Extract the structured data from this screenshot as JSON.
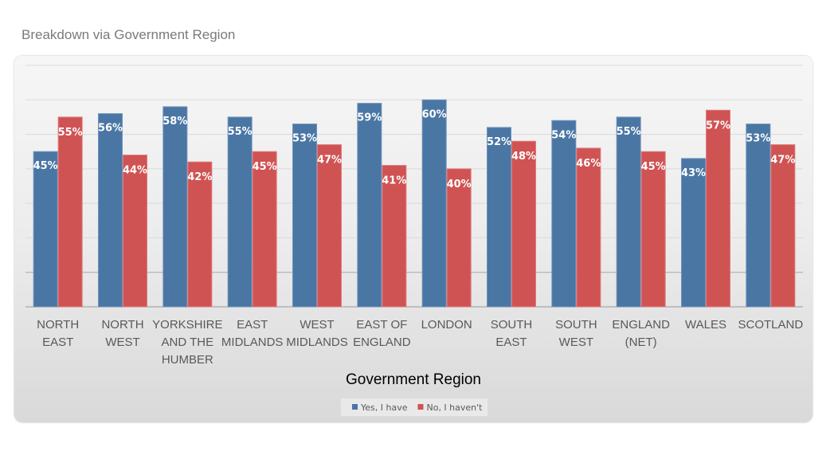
{
  "page_title": "Breakdown via Government Region",
  "chart_data": {
    "type": "bar",
    "title": "",
    "xlabel": "Government Region",
    "ylabel": "",
    "ylim": [
      0,
      70
    ],
    "grid": true,
    "legend_placement": "bottom",
    "categories": [
      [
        "NORTH",
        "EAST"
      ],
      [
        "NORTH",
        "WEST"
      ],
      [
        "YORKSHIRE",
        "AND THE",
        "HUMBER"
      ],
      [
        "EAST",
        "MIDLANDS"
      ],
      [
        "WEST",
        "MIDLANDS"
      ],
      [
        "EAST OF",
        "ENGLAND"
      ],
      [
        "LONDON"
      ],
      [
        "SOUTH",
        "EAST"
      ],
      [
        "SOUTH",
        "WEST"
      ],
      [
        "ENGLAND",
        "(NET)"
      ],
      [
        "WALES"
      ],
      [
        "SCOTLAND"
      ]
    ],
    "series": [
      {
        "name": "Yes, I have",
        "color": "#4a76a4",
        "values": [
          45,
          56,
          58,
          55,
          53,
          59,
          60,
          52,
          54,
          55,
          43,
          53
        ]
      },
      {
        "name": "No, I haven't",
        "color": "#d05353",
        "values": [
          55,
          44,
          42,
          45,
          47,
          41,
          40,
          48,
          46,
          45,
          57,
          47
        ]
      }
    ]
  }
}
